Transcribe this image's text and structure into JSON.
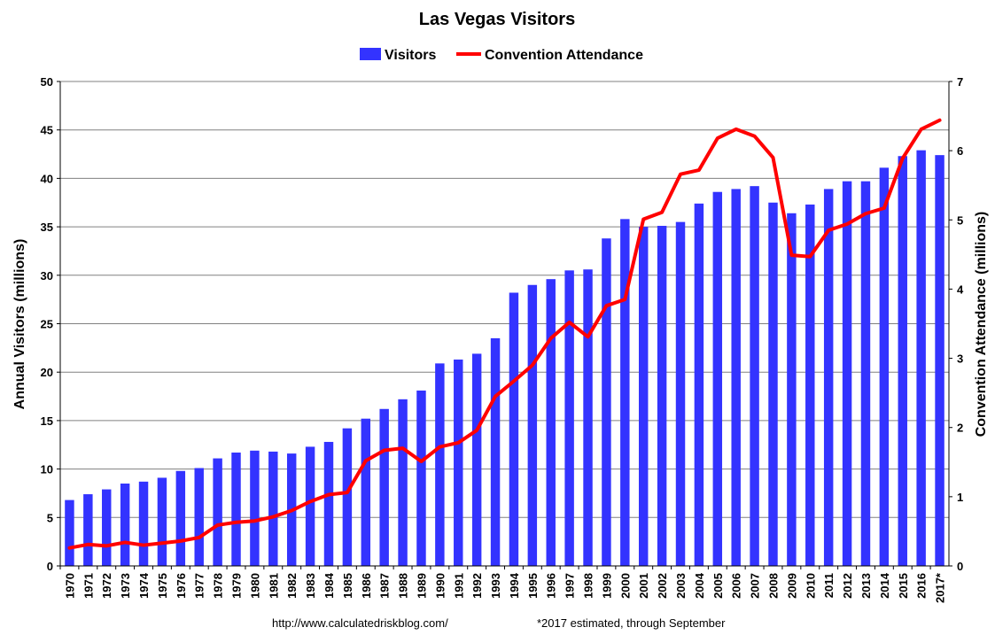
{
  "chart_data": {
    "type": "bar",
    "title": "Las Vegas Visitors",
    "categories": [
      "1970",
      "1971",
      "1972",
      "1973",
      "1974",
      "1975",
      "1976",
      "1977",
      "1978",
      "1979",
      "1980",
      "1981",
      "1982",
      "1983",
      "1984",
      "1985",
      "1986",
      "1987",
      "1988",
      "1989",
      "1990",
      "1991",
      "1992",
      "1993",
      "1994",
      "1995",
      "1996",
      "1997",
      "1998",
      "1999",
      "2000",
      "2001",
      "2002",
      "2003",
      "2004",
      "2005",
      "2006",
      "2007",
      "2008",
      "2009",
      "2010",
      "2011",
      "2012",
      "2013",
      "2014",
      "2015",
      "2016",
      "2017*"
    ],
    "series": [
      {
        "name": "Visitors",
        "type": "bar",
        "axis": "left",
        "color": "#3333ff",
        "values": [
          6.8,
          7.4,
          7.9,
          8.5,
          8.7,
          9.1,
          9.8,
          10.1,
          11.1,
          11.7,
          11.9,
          11.8,
          11.6,
          12.3,
          12.8,
          14.2,
          15.2,
          16.2,
          17.2,
          18.1,
          20.9,
          21.3,
          21.9,
          23.5,
          28.2,
          29.0,
          29.6,
          30.5,
          30.6,
          33.8,
          35.8,
          35.0,
          35.1,
          35.5,
          37.4,
          38.6,
          38.9,
          39.2,
          37.5,
          36.4,
          37.3,
          38.9,
          39.7,
          39.7,
          41.1,
          42.3,
          42.9,
          42.4
        ]
      },
      {
        "name": "Convention Attendance",
        "type": "line",
        "axis": "right",
        "color": "#ff0000",
        "values": [
          0.26,
          0.31,
          0.29,
          0.34,
          0.3,
          0.33,
          0.36,
          0.41,
          0.59,
          0.63,
          0.65,
          0.71,
          0.8,
          0.93,
          1.03,
          1.06,
          1.52,
          1.67,
          1.7,
          1.51,
          1.72,
          1.78,
          1.96,
          2.45,
          2.67,
          2.9,
          3.29,
          3.52,
          3.31,
          3.76,
          3.85,
          5.01,
          5.11,
          5.66,
          5.72,
          6.18,
          6.31,
          6.21,
          5.9,
          4.49,
          4.47,
          4.85,
          4.94,
          5.09,
          5.17,
          5.89,
          6.31,
          6.44
        ]
      }
    ],
    "ylabel": "Annual Visitors (millions)",
    "y2label": "Convention Attendance (millions)",
    "ylim": [
      0,
      50
    ],
    "y2lim": [
      0,
      7
    ],
    "yticks": [
      "0",
      "5",
      "10",
      "15",
      "20",
      "25",
      "30",
      "35",
      "40",
      "45",
      "50"
    ],
    "y2ticks": [
      "0",
      "1",
      "2",
      "3",
      "4",
      "5",
      "6",
      "7"
    ],
    "grid": true,
    "legend_position": "top-center",
    "footnote_left": "http://www.calculatedriskblog.com/",
    "footnote_right": "*2017 estimated, through September"
  }
}
